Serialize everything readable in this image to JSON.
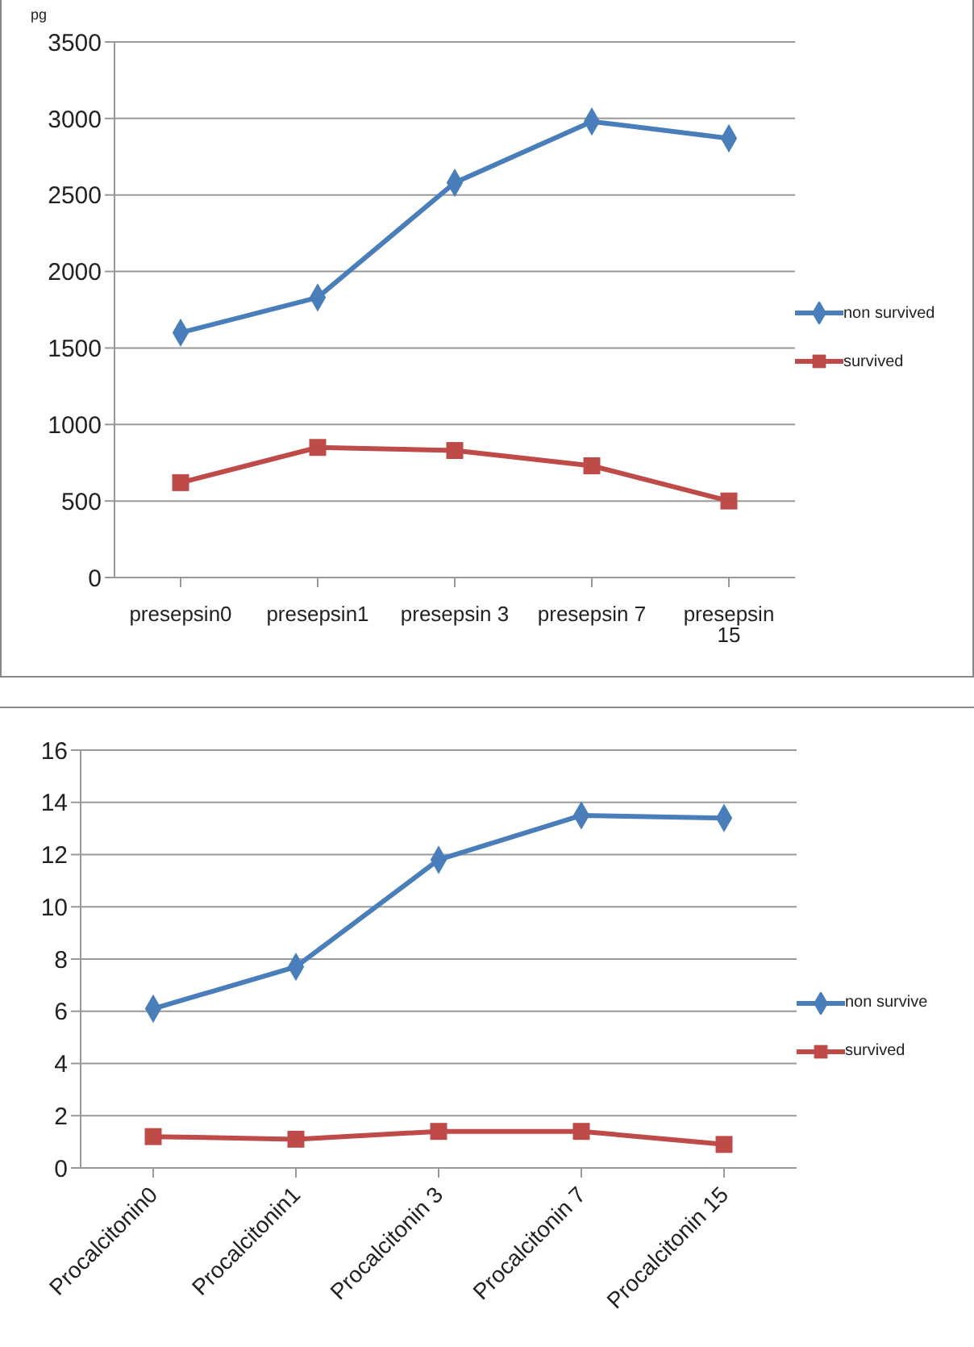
{
  "chart_data": [
    {
      "type": "line",
      "ylabel": "pg",
      "categories": [
        "presepsin0",
        "presepsin1",
        "presepsin 3",
        "presepsin 7",
        "presepsin 15"
      ],
      "ylim": [
        0,
        3500
      ],
      "yticks": [
        0,
        500,
        1000,
        1500,
        2000,
        2500,
        3000,
        3500
      ],
      "grid": "y",
      "legend": "right",
      "series": [
        {
          "name": "non survived",
          "color": "#4a7ebb",
          "marker": "diamond",
          "values": [
            1600,
            1830,
            2580,
            2980,
            2870
          ]
        },
        {
          "name": "survived",
          "color": "#be4b48",
          "marker": "square",
          "values": [
            620,
            850,
            830,
            730,
            500
          ]
        }
      ]
    },
    {
      "type": "line",
      "categories": [
        "Procalcitonin0",
        "Procalcitonin1",
        "Procalcitonin 3",
        "Procalcitonin 7",
        "Procalcitonin 15"
      ],
      "ylim": [
        0,
        16
      ],
      "yticks": [
        0,
        2,
        4,
        6,
        8,
        10,
        12,
        14,
        16
      ],
      "grid": "y",
      "legend": "right",
      "series": [
        {
          "name": "non survive",
          "color": "#4a7ebb",
          "marker": "diamond",
          "values": [
            6.1,
            7.7,
            11.8,
            13.5,
            13.4
          ]
        },
        {
          "name": "survived",
          "color": "#be4b48",
          "marker": "square",
          "values": [
            1.2,
            1.1,
            1.4,
            1.4,
            0.9
          ]
        }
      ]
    }
  ]
}
